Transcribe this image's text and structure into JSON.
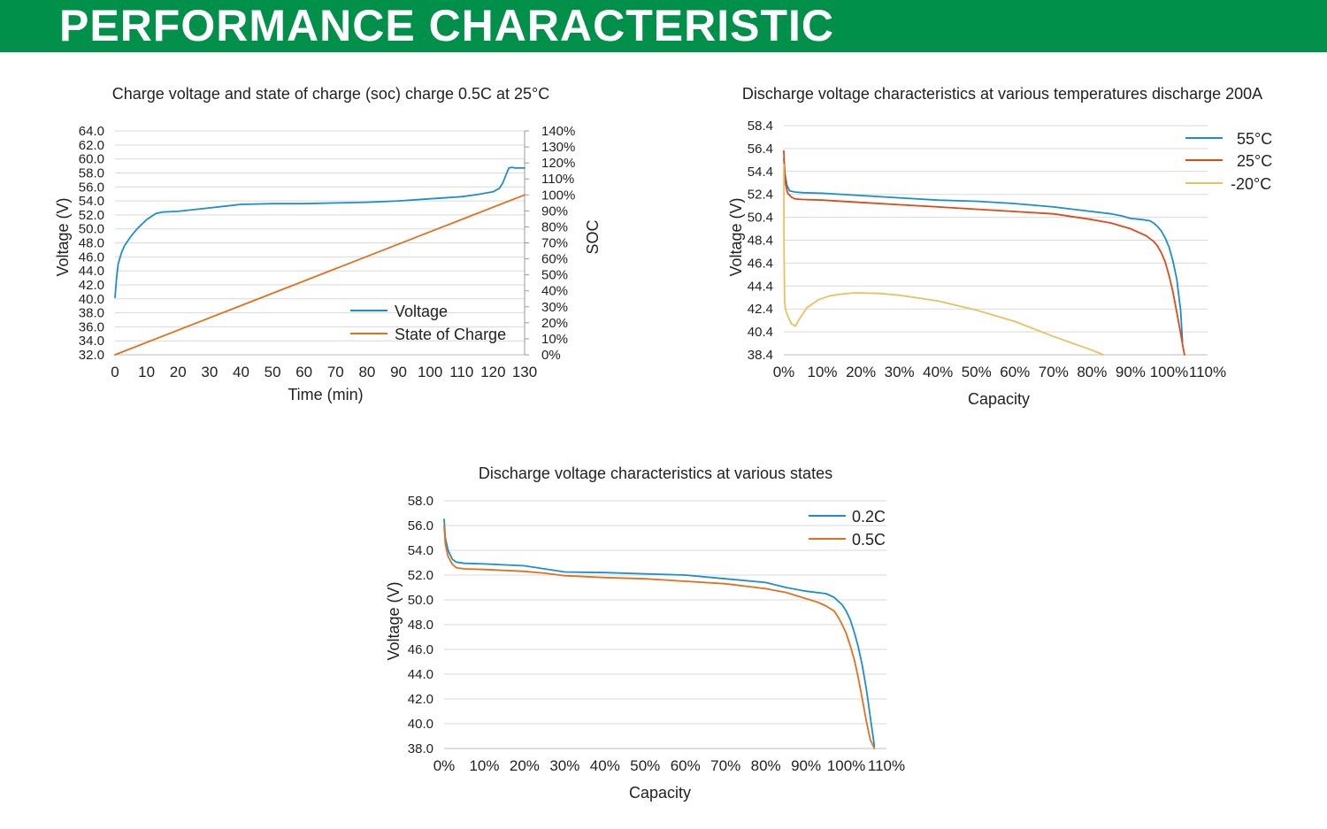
{
  "header": {
    "title": "PERFORMANCE CHARACTERISTIC"
  },
  "colors": {
    "header_bg": "#00904a",
    "blue": "#1b8ed2",
    "orange": "#e2701d",
    "red_orange": "#dd4a17",
    "yellow": "#e8c15f",
    "grid": "#d9d9d9"
  },
  "chart_data": [
    {
      "type": "line",
      "title": "Charge voltage and state of charge (soc) charge 0.5C at 25°C",
      "xlabel": "Time (min)",
      "ylabel": "Voltage (V)",
      "y2label": "SOC",
      "xlim": [
        0,
        130
      ],
      "ylim": [
        32,
        64
      ],
      "y2lim": [
        0,
        140
      ],
      "x_ticks": [
        "0",
        "10",
        "20",
        "30",
        "40",
        "50",
        "60",
        "70",
        "80",
        "90",
        "100",
        "110",
        "120",
        "130"
      ],
      "y_ticks": [
        "32.0",
        "34.0",
        "36.0",
        "38.0",
        "40.0",
        "42.0",
        "44.0",
        "46.0",
        "48.0",
        "50.0",
        "52.0",
        "54.0",
        "56.0",
        "58.0",
        "60.0",
        "62.0",
        "64.0"
      ],
      "y2_ticks": [
        "0%",
        "10%",
        "20%",
        "30%",
        "40%",
        "50%",
        "60%",
        "70%",
        "80%",
        "90%",
        "100%",
        "110%",
        "120%",
        "130%",
        "140%"
      ],
      "legend": "center-right",
      "series": [
        {
          "name": "Voltage",
          "color": "#1b8ed2",
          "axis": "left",
          "x": [
            0,
            0.5,
            1,
            2,
            3,
            5,
            7,
            10,
            13,
            15,
            20,
            30,
            40,
            50,
            60,
            70,
            80,
            90,
            100,
            110,
            115,
            120,
            122,
            123,
            124,
            125,
            126,
            127,
            130
          ],
          "y": [
            40.2,
            43,
            45,
            46.5,
            47.6,
            48.9,
            50,
            51.3,
            52.2,
            52.4,
            52.5,
            53,
            53.5,
            53.6,
            53.6,
            53.7,
            53.8,
            54,
            54.3,
            54.6,
            54.9,
            55.3,
            55.8,
            56.5,
            57.6,
            58.7,
            58.8,
            58.7,
            58.7
          ]
        },
        {
          "name": "State of Charge",
          "color": "#e2701d",
          "axis": "right",
          "x": [
            0,
            130
          ],
          "y": [
            0,
            100
          ]
        }
      ]
    },
    {
      "type": "line",
      "title": "Discharge voltage characteristics at various temperatures discharge 200A",
      "xlabel": "Capacity",
      "ylabel": "Voltage (V)",
      "xlim": [
        0,
        110
      ],
      "ylim": [
        38.4,
        58.4
      ],
      "x_ticks": [
        "0%",
        "10%",
        "20%",
        "30%",
        "40%",
        "50%",
        "60%",
        "70%",
        "80%",
        "90%",
        "100%",
        "110%"
      ],
      "y_ticks": [
        "38.4",
        "40.4",
        "42.4",
        "44.4",
        "46.4",
        "48.4",
        "50.4",
        "52.4",
        "54.4",
        "56.4",
        "58.4"
      ],
      "legend": "top-right",
      "series": [
        {
          "name": "55°C",
          "color": "#1b8ed2",
          "x": [
            0,
            0.3,
            0.8,
            1.5,
            3,
            5,
            10,
            20,
            30,
            40,
            50,
            60,
            70,
            80,
            85,
            88,
            90,
            93,
            95,
            96,
            97,
            98,
            99,
            100,
            101,
            102,
            103,
            103.5
          ],
          "y": [
            55.5,
            54.2,
            53.2,
            52.7,
            52.6,
            52.55,
            52.5,
            52.3,
            52.1,
            51.9,
            51.8,
            51.6,
            51.3,
            50.9,
            50.7,
            50.5,
            50.3,
            50.2,
            50.1,
            49.9,
            49.6,
            49.2,
            48.6,
            47.8,
            46.6,
            45,
            42.3,
            39.5
          ]
        },
        {
          "name": "25°C",
          "color": "#dd4a17",
          "x": [
            0,
            0.2,
            0.5,
            1,
            2,
            3,
            5,
            10,
            20,
            30,
            40,
            50,
            60,
            70,
            80,
            85,
            88,
            90,
            92,
            94,
            96,
            97,
            98,
            99,
            100,
            101,
            102,
            103,
            103.5,
            104
          ],
          "y": [
            56.2,
            54.5,
            53.2,
            52.5,
            52.15,
            52,
            51.95,
            51.9,
            51.7,
            51.5,
            51.3,
            51.1,
            50.9,
            50.7,
            50.2,
            49.9,
            49.6,
            49.4,
            49.1,
            48.8,
            48.3,
            47.9,
            47.3,
            46.5,
            45.3,
            43.9,
            42.1,
            40.3,
            39.3,
            38.4
          ]
        },
        {
          "name": "-20°C",
          "color": "#e8c15f",
          "x": [
            0,
            0.05,
            0.2,
            0.5,
            1,
            2,
            3,
            4,
            6,
            9,
            12,
            15,
            18,
            20,
            25,
            30,
            40,
            50,
            60,
            70,
            80,
            83
          ],
          "y": [
            55,
            48,
            43,
            42.3,
            41.8,
            41.1,
            40.9,
            41.5,
            42.5,
            43.2,
            43.55,
            43.7,
            43.8,
            43.8,
            43.75,
            43.6,
            43.1,
            42.3,
            41.3,
            40,
            38.8,
            38.4
          ]
        }
      ]
    },
    {
      "type": "line",
      "title": "Discharge voltage characteristics at various states",
      "xlabel": "Capacity",
      "ylabel": "Voltage (V)",
      "xlim": [
        0,
        110
      ],
      "ylim": [
        38,
        58
      ],
      "x_ticks": [
        "0%",
        "10%",
        "20%",
        "30%",
        "40%",
        "50%",
        "60%",
        "70%",
        "80%",
        "90%",
        "100%",
        "110%"
      ],
      "y_ticks": [
        "38.0",
        "40.0",
        "42.0",
        "44.0",
        "46.0",
        "48.0",
        "50.0",
        "52.0",
        "54.0",
        "56.0",
        "58.0"
      ],
      "legend": "top-right",
      "series": [
        {
          "name": "0.2C",
          "color": "#1b8ed2",
          "x": [
            0,
            0.3,
            1,
            2,
            3,
            5,
            10,
            20,
            25,
            30,
            40,
            50,
            60,
            70,
            80,
            85,
            90,
            95,
            97,
            99,
            100,
            101,
            102,
            103,
            104,
            105,
            106,
            107
          ],
          "y": [
            56.5,
            55,
            54,
            53.3,
            53.05,
            52.95,
            52.9,
            52.75,
            52.5,
            52.25,
            52.2,
            52.1,
            52,
            51.7,
            51.4,
            51,
            50.7,
            50.5,
            50.2,
            49.6,
            49.1,
            48.4,
            47.4,
            46.2,
            44.7,
            42.8,
            40.5,
            38.2
          ]
        },
        {
          "name": "0.5C",
          "color": "#e2701d",
          "x": [
            0,
            0.3,
            1,
            2,
            3,
            5,
            10,
            20,
            25,
            30,
            40,
            50,
            60,
            70,
            80,
            85,
            90,
            93,
            95,
            97,
            98,
            99,
            100,
            101,
            102,
            103,
            104,
            105,
            106,
            107
          ],
          "y": [
            56,
            54.5,
            53.5,
            52.9,
            52.6,
            52.5,
            52.45,
            52.3,
            52.15,
            51.95,
            51.8,
            51.7,
            51.5,
            51.3,
            50.9,
            50.6,
            50.1,
            49.8,
            49.5,
            49.1,
            48.6,
            48,
            47.3,
            46.3,
            45.2,
            43.7,
            42,
            40.2,
            38.7,
            38
          ]
        }
      ]
    }
  ]
}
